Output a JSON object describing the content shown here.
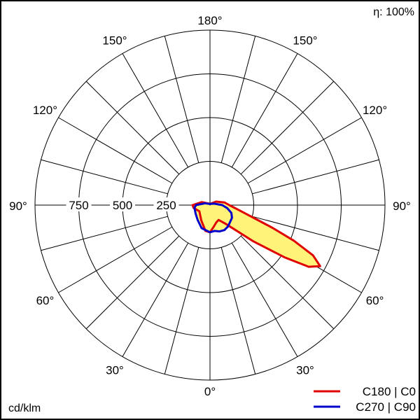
{
  "chart_data": {
    "type": "polar",
    "efficiency_label": "η: 100%",
    "unit_label": "cd/klm",
    "radial_max": 1000,
    "radial_ticks": [
      {
        "value": 250,
        "label": "250"
      },
      {
        "value": 500,
        "label": "500"
      },
      {
        "value": 750,
        "label": "750"
      }
    ],
    "angle_ticks": [
      {
        "angle": 0,
        "label": "0°"
      },
      {
        "angle": 30,
        "label": "30°"
      },
      {
        "angle": 60,
        "label": "60°"
      },
      {
        "angle": 90,
        "label": "90°"
      },
      {
        "angle": 120,
        "label": "120°"
      },
      {
        "angle": 150,
        "label": "150°"
      },
      {
        "angle": 180,
        "label": "180°"
      }
    ],
    "fill_color": "#fff37a",
    "series": [
      {
        "name": "C180 | C0",
        "color": "#e00000",
        "side": "right",
        "points": [
          {
            "angle": 0,
            "value": 155
          },
          {
            "angle": 10,
            "value": 125
          },
          {
            "angle": 20,
            "value": 105
          },
          {
            "angle": 30,
            "value": 98
          },
          {
            "angle": 40,
            "value": 140
          },
          {
            "angle": 50,
            "value": 320
          },
          {
            "angle": 55,
            "value": 520
          },
          {
            "angle": 58,
            "value": 665
          },
          {
            "angle": 61,
            "value": 720
          },
          {
            "angle": 64,
            "value": 655
          },
          {
            "angle": 67,
            "value": 520
          },
          {
            "angle": 70,
            "value": 380
          },
          {
            "angle": 80,
            "value": 170
          },
          {
            "angle": 90,
            "value": 110
          },
          {
            "angle": 100,
            "value": 85
          },
          {
            "angle": 120,
            "value": 40
          },
          {
            "angle": 150,
            "value": 10
          },
          {
            "angle": 180,
            "value": 5
          }
        ],
        "mirror": [
          {
            "angle": 0,
            "value": 155
          },
          {
            "angle": 10,
            "value": 150
          },
          {
            "angle": 30,
            "value": 100
          },
          {
            "angle": 60,
            "value": 70
          },
          {
            "angle": 80,
            "value": 95
          },
          {
            "angle": 90,
            "value": 100
          },
          {
            "angle": 110,
            "value": 50
          },
          {
            "angle": 150,
            "value": 10
          },
          {
            "angle": 180,
            "value": 5
          }
        ]
      },
      {
        "name": "C270 | C90",
        "color": "#0000cc",
        "side": "both",
        "points": [
          {
            "angle": 0,
            "value": 155
          },
          {
            "angle": 10,
            "value": 150
          },
          {
            "angle": 20,
            "value": 160
          },
          {
            "angle": 30,
            "value": 165
          },
          {
            "angle": 40,
            "value": 160
          },
          {
            "angle": 50,
            "value": 150
          },
          {
            "angle": 60,
            "value": 145
          },
          {
            "angle": 70,
            "value": 130
          },
          {
            "angle": 80,
            "value": 100
          },
          {
            "angle": 90,
            "value": 70
          },
          {
            "angle": 110,
            "value": 25
          },
          {
            "angle": 150,
            "value": 8
          },
          {
            "angle": 180,
            "value": 5
          }
        ],
        "mirror": [
          {
            "angle": 0,
            "value": 155
          },
          {
            "angle": 20,
            "value": 140
          },
          {
            "angle": 40,
            "value": 110
          },
          {
            "angle": 60,
            "value": 95
          },
          {
            "angle": 80,
            "value": 90
          },
          {
            "angle": 90,
            "value": 80
          },
          {
            "angle": 110,
            "value": 30
          },
          {
            "angle": 150,
            "value": 8
          },
          {
            "angle": 180,
            "value": 5
          }
        ]
      }
    ],
    "legend": [
      {
        "label": "C180 | C0",
        "color": "#e00000"
      },
      {
        "label": "C270 | C90",
        "color": "#0000cc"
      }
    ]
  }
}
